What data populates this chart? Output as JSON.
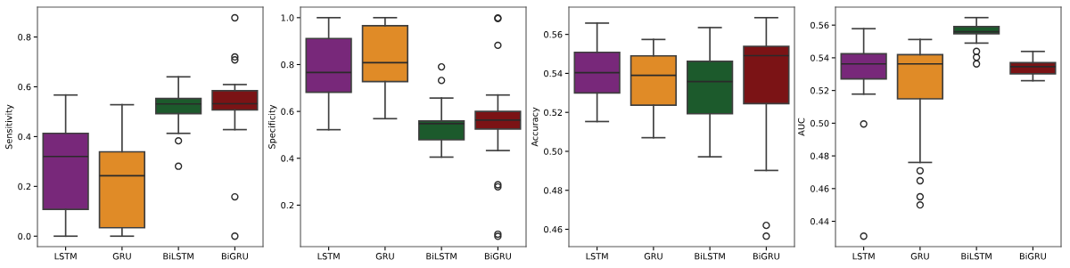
{
  "chart_data": [
    {
      "type": "box",
      "ylabel": "Sensitivity",
      "categories": [
        "LSTM",
        "GRU",
        "BiLSTM",
        "BiGRU"
      ],
      "colors": [
        "#78287a",
        "#e08b27",
        "#1c5a2c",
        "#7b1315"
      ],
      "ylim": [
        -0.042,
        0.92
      ],
      "yticks": [
        {
          "value": 0,
          "label": "0.0"
        },
        0.2,
        0.4,
        0.6,
        0.8
      ],
      "grid": false,
      "boxes": [
        {
          "low": 0.0,
          "q1": 0.108,
          "median": 0.32,
          "q3": 0.413,
          "high": 0.567
        },
        {
          "low": 0.0,
          "q1": 0.034,
          "median": 0.243,
          "q3": 0.339,
          "high": 0.528
        },
        {
          "low": 0.413,
          "q1": 0.492,
          "median": 0.531,
          "q3": 0.553,
          "high": 0.64,
          "outliers": [
            0.383,
            0.281
          ]
        },
        {
          "low": 0.428,
          "q1": 0.507,
          "median": 0.532,
          "q3": 0.584,
          "high": 0.609,
          "outliers": [
            0.877,
            0.72,
            0.708,
            0.158,
            0.0
          ]
        }
      ]
    },
    {
      "type": "box",
      "ylabel": "Specificity",
      "categories": [
        "LSTM",
        "GRU",
        "BiLSTM",
        "BiGRU"
      ],
      "colors": [
        "#78287a",
        "#e08b27",
        "#1c5a2c",
        "#7b1315"
      ],
      "ylim": [
        0.023,
        1.045
      ],
      "yticks": [
        0.2,
        0.4,
        0.6,
        0.8,
        {
          "value": 1,
          "label": "1.0"
        }
      ],
      "grid": false,
      "boxes": [
        {
          "low": 0.522,
          "q1": 0.682,
          "median": 0.766,
          "q3": 0.911,
          "high": 1.0
        },
        {
          "low": 0.569,
          "q1": 0.727,
          "median": 0.808,
          "q3": 0.966,
          "high": 1.0
        },
        {
          "low": 0.405,
          "q1": 0.479,
          "median": 0.548,
          "q3": 0.559,
          "high": 0.657,
          "outliers": [
            0.79,
            0.732
          ]
        },
        {
          "low": 0.433,
          "q1": 0.525,
          "median": 0.563,
          "q3": 0.6,
          "high": 0.67,
          "outliers": [
            0.999,
            0.996,
            0.882,
            0.287,
            0.278,
            0.076,
            0.067
          ]
        }
      ]
    },
    {
      "type": "box",
      "ylabel": "Accuracy",
      "categories": [
        "LSTM",
        "GRU",
        "BiLSTM",
        "BiGRU"
      ],
      "colors": [
        "#78287a",
        "#e08b27",
        "#1c5a2c",
        "#7b1315"
      ],
      "ylim": [
        0.4511,
        0.574
      ],
      "yticks": [
        0.46,
        0.48,
        {
          "value": 0.5,
          "label": "0.50"
        },
        0.52,
        0.54,
        0.56
      ],
      "grid": false,
      "boxes": [
        {
          "low": 0.5153,
          "q1": 0.53,
          "median": 0.5404,
          "q3": 0.5508,
          "high": 0.5658
        },
        {
          "low": 0.507,
          "q1": 0.5237,
          "median": 0.539,
          "q3": 0.549,
          "high": 0.5574
        },
        {
          "low": 0.4972,
          "q1": 0.5193,
          "median": 0.5358,
          "q3": 0.5462,
          "high": 0.5635
        },
        {
          "low": 0.4902,
          "q1": 0.5245,
          "median": 0.5491,
          "q3": 0.5539,
          "high": 0.5686,
          "outliers": [
            0.462,
            0.4565
          ]
        }
      ]
    },
    {
      "type": "box",
      "ylabel": "AUC",
      "categories": [
        "LSTM",
        "GRU",
        "BiLSTM",
        "BiGRU"
      ],
      "colors": [
        "#78287a",
        "#e08b27",
        "#1c5a2c",
        "#7b1315"
      ],
      "ylim": [
        0.4245,
        0.571
      ],
      "yticks": [
        0.44,
        0.46,
        0.48,
        {
          "value": 0.5,
          "label": "0.50"
        },
        0.52,
        0.54,
        0.56
      ],
      "grid": false,
      "boxes": [
        {
          "low": 0.5178,
          "q1": 0.5271,
          "median": 0.5363,
          "q3": 0.5425,
          "high": 0.5578,
          "outliers": [
            0.4995,
            0.4309
          ]
        },
        {
          "low": 0.476,
          "q1": 0.5149,
          "median": 0.5363,
          "q3": 0.5419,
          "high": 0.5512,
          "outliers": [
            0.4709,
            0.4648,
            0.455,
            0.45
          ]
        },
        {
          "low": 0.549,
          "q1": 0.5547,
          "median": 0.556,
          "q3": 0.5591,
          "high": 0.5646,
          "outliers": [
            0.5439,
            0.5403,
            0.5363
          ]
        },
        {
          "low": 0.526,
          "q1": 0.5302,
          "median": 0.5346,
          "q3": 0.537,
          "high": 0.5439
        }
      ]
    }
  ]
}
